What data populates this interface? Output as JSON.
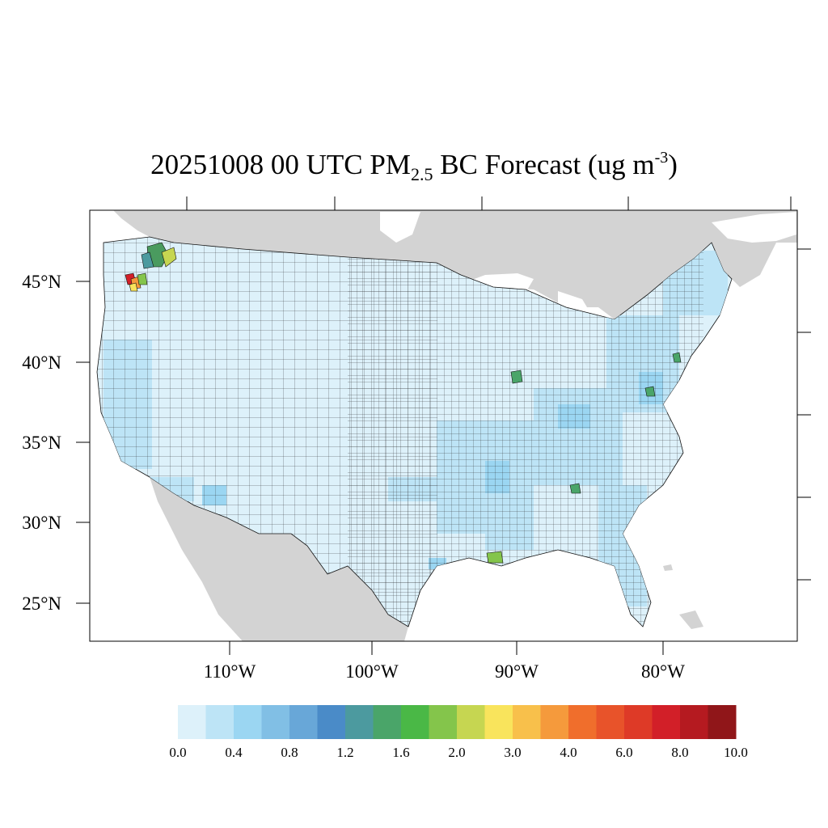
{
  "title": {
    "prefix": "20251008 00 UTC PM",
    "subscript": "2.5",
    "middle": " BC Forecast (ug m",
    "superscript": "-3",
    "suffix": ")"
  },
  "map": {
    "type": "choropleth",
    "variable": "PM2.5 BC Forecast",
    "units": "ug m-3",
    "region": "CONUS counties",
    "land_outside_color": "#d3d3d3",
    "water_color": "#ffffff",
    "latitude_labels": [
      "45°N",
      "40°N",
      "35°N",
      "30°N",
      "25°N"
    ],
    "longitude_labels": [
      "110°W",
      "100°W",
      "90°W",
      "80°W"
    ],
    "highlights": [
      {
        "area": "NW Oregon (Portland area)",
        "level": "6.0-10.0",
        "color": "#d62728"
      },
      {
        "area": "Western Washington",
        "level": "1.2-2.0",
        "color": "#4a9b5f"
      },
      {
        "area": "Northern Idaho",
        "level": "2.0-3.0",
        "color": "#c6d651"
      },
      {
        "area": "Chicago area",
        "level": "1.2-1.6",
        "color": "#4aa569"
      },
      {
        "area": "Baltimore/DC area",
        "level": "1.2-1.6",
        "color": "#4aa569"
      },
      {
        "area": "New Orleans area",
        "level": "1.6-2.0",
        "color": "#84c54b"
      },
      {
        "area": "Atlanta area",
        "level": "1.2-1.6",
        "color": "#4aa569"
      }
    ]
  },
  "colorbar": {
    "colors": [
      "#ddf1fa",
      "#bde4f6",
      "#9bd6f2",
      "#81bfe5",
      "#68a7d8",
      "#4a8bc8",
      "#4c9a9f",
      "#4aa569",
      "#4ab846",
      "#84c54b",
      "#c6d651",
      "#f9e45c",
      "#f8c04b",
      "#f59a3c",
      "#f06e2c",
      "#e8532a",
      "#de3a27",
      "#d21f28",
      "#b51a20",
      "#901619"
    ],
    "tick_labels": [
      "0.0",
      "0.4",
      "0.8",
      "1.2",
      "1.6",
      "2.0",
      "3.0",
      "4.0",
      "6.0",
      "8.0",
      "10.0"
    ]
  }
}
